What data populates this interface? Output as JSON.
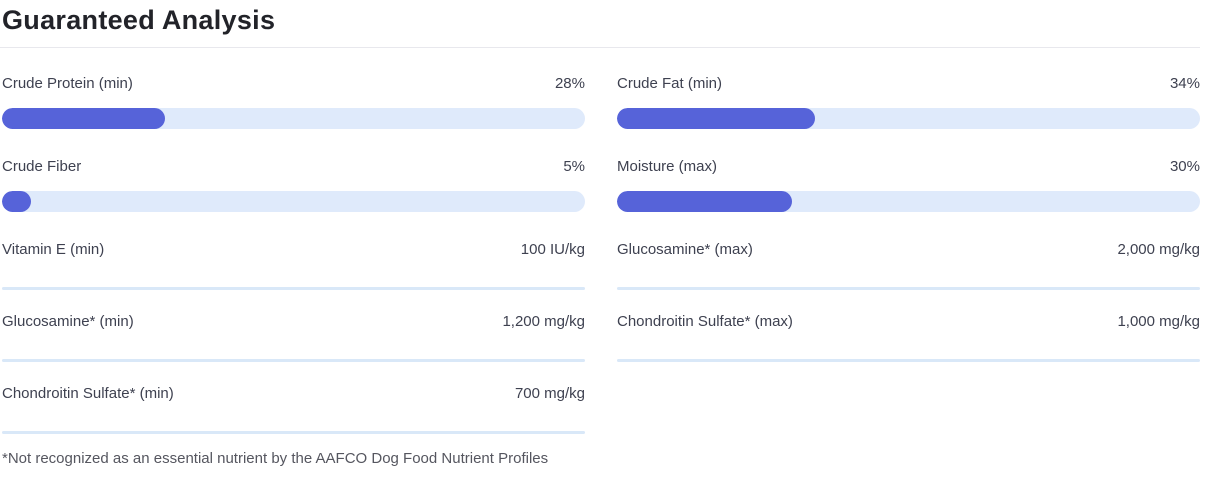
{
  "page": {
    "title": "Guaranteed Analysis",
    "footnote": "*Not recognized as an essential nutrient by the AAFCO Dog Food Nutrient Profiles"
  },
  "colors": {
    "bar_fill": "#5663d9",
    "bar_track": "#dfeafb",
    "divider": "#d9e8f8",
    "title_divider": "#e8e8ed",
    "label_color": "#3e4150",
    "title_color": "#222329",
    "footnote_color": "#55565f"
  },
  "columns": {
    "left": [
      {
        "label": "Crude Protein (min)",
        "value": "28%",
        "bar": true,
        "percent": 28
      },
      {
        "label": "Crude Fiber",
        "value": "5%",
        "bar": true,
        "percent": 5
      },
      {
        "label": "Vitamin E (min)",
        "value": "100 IU/kg",
        "bar": false
      },
      {
        "label": "Glucosamine* (min)",
        "value": "1,200 mg/kg",
        "bar": false
      },
      {
        "label": "Chondroitin Sulfate* (min)",
        "value": "700 mg/kg",
        "bar": false
      }
    ],
    "right": [
      {
        "label": "Crude Fat (min)",
        "value": "34%",
        "bar": true,
        "percent": 34
      },
      {
        "label": "Moisture (max)",
        "value": "30%",
        "bar": true,
        "percent": 30
      },
      {
        "label": "Glucosamine* (max)",
        "value": "2,000 mg/kg",
        "bar": false
      },
      {
        "label": "Chondroitin Sulfate* (max)",
        "value": "1,000 mg/kg",
        "bar": false
      }
    ]
  }
}
